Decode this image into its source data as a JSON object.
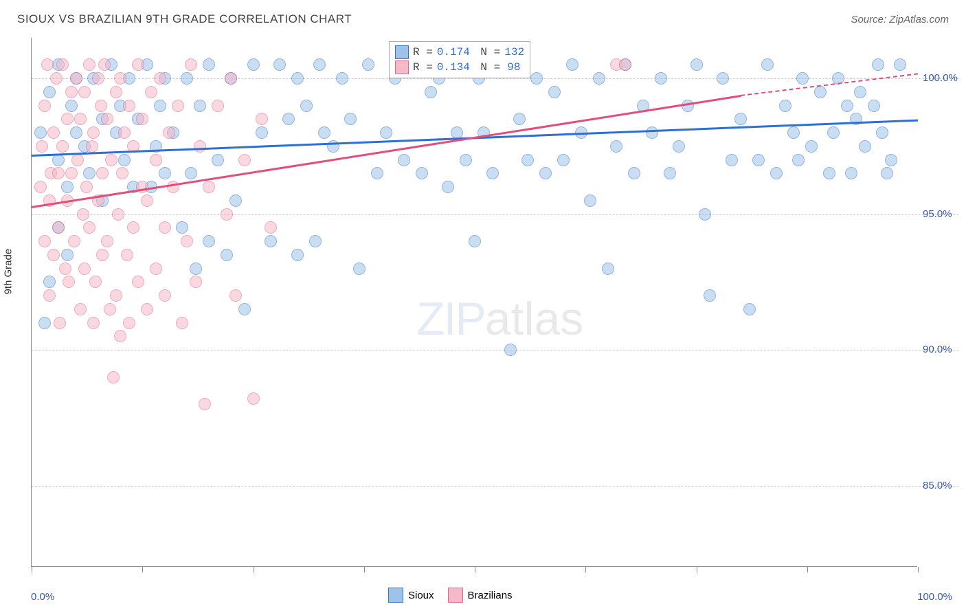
{
  "title": "SIOUX VS BRAZILIAN 9TH GRADE CORRELATION CHART",
  "source": "Source: ZipAtlas.com",
  "ylabel": "9th Grade",
  "watermark_zip": "ZIP",
  "watermark_atlas": "atlas",
  "chart": {
    "type": "scatter",
    "xlim": [
      0,
      100
    ],
    "ylim": [
      82,
      101.5
    ],
    "x_ticks": [
      0,
      12.5,
      25,
      37.5,
      50,
      62.5,
      75,
      87.5,
      100
    ],
    "x_labels": {
      "0": "0.0%",
      "100": "100.0%"
    },
    "y_gridlines": [
      85,
      90,
      95,
      100
    ],
    "y_labels": {
      "85": "85.0%",
      "90": "90.0%",
      "95": "95.0%",
      "100": "100.0%"
    },
    "background_color": "#ffffff",
    "grid_color": "#cccccc",
    "axis_color": "#888888",
    "tick_label_color": "#3857a6",
    "title_fontsize": 17,
    "label_fontsize": 15
  },
  "series": [
    {
      "name": "Sioux",
      "color_fill": "#9ec3ea",
      "color_stroke": "#3b78c4",
      "trend_color": "#2d6fd8",
      "trend_width": 2.5,
      "R": "0.174",
      "N": "132",
      "trend": {
        "x1": 0,
        "y1": 97.2,
        "x2": 100,
        "y2": 98.5,
        "dash_from": 100
      },
      "points": [
        [
          1,
          98
        ],
        [
          2,
          99.5
        ],
        [
          3,
          97
        ],
        [
          3,
          100.5
        ],
        [
          4,
          96
        ],
        [
          4.5,
          99
        ],
        [
          5,
          98
        ],
        [
          5,
          100
        ],
        [
          6,
          97.5
        ],
        [
          6.5,
          96.5
        ],
        [
          7,
          100
        ],
        [
          8,
          98.5
        ],
        [
          8,
          95.5
        ],
        [
          9,
          100.5
        ],
        [
          9.5,
          98
        ],
        [
          10,
          99
        ],
        [
          10.5,
          97
        ],
        [
          11,
          100
        ],
        [
          11.5,
          96
        ],
        [
          12,
          98.5
        ],
        [
          13,
          100.5
        ],
        [
          13.5,
          96
        ],
        [
          14,
          97.5
        ],
        [
          14.5,
          99
        ],
        [
          15,
          96.5
        ],
        [
          15,
          100
        ],
        [
          16,
          98
        ],
        [
          17,
          94.5
        ],
        [
          17.5,
          100
        ],
        [
          18,
          96.5
        ],
        [
          18.5,
          93
        ],
        [
          19,
          99
        ],
        [
          20,
          94
        ],
        [
          20,
          100.5
        ],
        [
          21,
          97
        ],
        [
          22,
          93.5
        ],
        [
          22.5,
          100
        ],
        [
          23,
          95.5
        ],
        [
          24,
          91.5
        ],
        [
          25,
          100.5
        ],
        [
          26,
          98
        ],
        [
          27,
          94
        ],
        [
          28,
          100.5
        ],
        [
          29,
          98.5
        ],
        [
          30,
          100
        ],
        [
          30,
          93.5
        ],
        [
          31,
          99
        ],
        [
          32,
          94
        ],
        [
          32.5,
          100.5
        ],
        [
          33,
          98
        ],
        [
          34,
          97.5
        ],
        [
          35,
          100
        ],
        [
          36,
          98.5
        ],
        [
          37,
          93
        ],
        [
          38,
          100.5
        ],
        [
          39,
          96.5
        ],
        [
          40,
          98
        ],
        [
          41,
          100
        ],
        [
          42,
          97
        ],
        [
          43,
          100.5
        ],
        [
          44,
          96.5
        ],
        [
          45,
          99.5
        ],
        [
          46,
          100
        ],
        [
          47,
          96
        ],
        [
          48,
          98
        ],
        [
          48.5,
          100.5
        ],
        [
          49,
          97
        ],
        [
          50,
          94
        ],
        [
          50.5,
          100
        ],
        [
          51,
          98
        ],
        [
          52,
          96.5
        ],
        [
          53,
          100.5
        ],
        [
          54,
          90
        ],
        [
          55,
          98.5
        ],
        [
          56,
          97
        ],
        [
          57,
          100
        ],
        [
          58,
          96.5
        ],
        [
          59,
          99.5
        ],
        [
          60,
          97
        ],
        [
          61,
          100.5
        ],
        [
          62,
          98
        ],
        [
          63,
          95.5
        ],
        [
          64,
          100
        ],
        [
          65,
          93
        ],
        [
          66,
          97.5
        ],
        [
          67,
          100.5
        ],
        [
          68,
          96.5
        ],
        [
          69,
          99
        ],
        [
          70,
          98
        ],
        [
          71,
          100
        ],
        [
          72,
          96.5
        ],
        [
          73,
          97.5
        ],
        [
          74,
          99
        ],
        [
          75,
          100.5
        ],
        [
          76,
          95
        ],
        [
          76.5,
          92
        ],
        [
          78,
          100
        ],
        [
          79,
          97
        ],
        [
          80,
          98.5
        ],
        [
          81,
          91.5
        ],
        [
          82,
          97
        ],
        [
          83,
          100.5
        ],
        [
          84,
          96.5
        ],
        [
          85,
          99
        ],
        [
          86,
          98
        ],
        [
          86.5,
          97
        ],
        [
          87,
          100
        ],
        [
          88,
          97.5
        ],
        [
          89,
          99.5
        ],
        [
          90,
          96.5
        ],
        [
          90.5,
          98
        ],
        [
          91,
          100
        ],
        [
          92,
          99
        ],
        [
          92.5,
          96.5
        ],
        [
          93,
          98.5
        ],
        [
          93.5,
          99.5
        ],
        [
          94,
          97.5
        ],
        [
          95,
          99
        ],
        [
          95.5,
          100.5
        ],
        [
          96,
          98
        ],
        [
          96.5,
          96.5
        ],
        [
          97,
          97
        ],
        [
          98,
          100.5
        ],
        [
          3,
          94.5
        ],
        [
          4,
          93.5
        ],
        [
          2,
          92.5
        ],
        [
          1.5,
          91
        ]
      ]
    },
    {
      "name": "Brazilians",
      "color_fill": "#f5b9c8",
      "color_stroke": "#e06890",
      "trend_color": "#e34d7a",
      "trend_width": 2.5,
      "R": "0.134",
      "N": "98",
      "trend": {
        "x1": 0,
        "y1": 95.3,
        "x2": 80,
        "y2": 99.4,
        "dash_from": 80,
        "dash_x2": 100,
        "dash_y2": 100.2
      },
      "points": [
        [
          1,
          96
        ],
        [
          1.2,
          97.5
        ],
        [
          1.5,
          94
        ],
        [
          1.5,
          99
        ],
        [
          1.8,
          100.5
        ],
        [
          2,
          95.5
        ],
        [
          2,
          92
        ],
        [
          2.2,
          96.5
        ],
        [
          2.5,
          98
        ],
        [
          2.5,
          93.5
        ],
        [
          2.8,
          100
        ],
        [
          3,
          96.5
        ],
        [
          3,
          94.5
        ],
        [
          3.2,
          91
        ],
        [
          3.5,
          97.5
        ],
        [
          3.5,
          100.5
        ],
        [
          3.8,
          93
        ],
        [
          4,
          98.5
        ],
        [
          4,
          95.5
        ],
        [
          4.2,
          92.5
        ],
        [
          4.5,
          99.5
        ],
        [
          4.5,
          96.5
        ],
        [
          4.8,
          94
        ],
        [
          5,
          100
        ],
        [
          5.2,
          97
        ],
        [
          5.5,
          91.5
        ],
        [
          5.5,
          98.5
        ],
        [
          5.8,
          95
        ],
        [
          6,
          99.5
        ],
        [
          6,
          93
        ],
        [
          6.2,
          96
        ],
        [
          6.5,
          100.5
        ],
        [
          6.5,
          94.5
        ],
        [
          6.8,
          97.5
        ],
        [
          7,
          91
        ],
        [
          7,
          98
        ],
        [
          7.2,
          92.5
        ],
        [
          7.5,
          100
        ],
        [
          7.5,
          95.5
        ],
        [
          7.8,
          99
        ],
        [
          8,
          93.5
        ],
        [
          8,
          96.5
        ],
        [
          8.2,
          100.5
        ],
        [
          8.5,
          94
        ],
        [
          8.5,
          98.5
        ],
        [
          8.8,
          91.5
        ],
        [
          9,
          97
        ],
        [
          9.2,
          89
        ],
        [
          9.5,
          99.5
        ],
        [
          9.5,
          92
        ],
        [
          9.8,
          95
        ],
        [
          10,
          100
        ],
        [
          10,
          90.5
        ],
        [
          10.2,
          96.5
        ],
        [
          10.5,
          98
        ],
        [
          10.8,
          93.5
        ],
        [
          11,
          99
        ],
        [
          11,
          91
        ],
        [
          11.5,
          97.5
        ],
        [
          11.5,
          94.5
        ],
        [
          12,
          100.5
        ],
        [
          12,
          92.5
        ],
        [
          12.5,
          96
        ],
        [
          12.5,
          98.5
        ],
        [
          13,
          95.5
        ],
        [
          13,
          91.5
        ],
        [
          13.5,
          99.5
        ],
        [
          14,
          93
        ],
        [
          14,
          97
        ],
        [
          14.5,
          100
        ],
        [
          15,
          94.5
        ],
        [
          15,
          92
        ],
        [
          15.5,
          98
        ],
        [
          16,
          96
        ],
        [
          16.5,
          99
        ],
        [
          17,
          91
        ],
        [
          17.5,
          94
        ],
        [
          18,
          100.5
        ],
        [
          18.5,
          92.5
        ],
        [
          19,
          97.5
        ],
        [
          19.5,
          88
        ],
        [
          20,
          96
        ],
        [
          21,
          99
        ],
        [
          22,
          95
        ],
        [
          22.5,
          100
        ],
        [
          23,
          92
        ],
        [
          24,
          97
        ],
        [
          25,
          88.2
        ],
        [
          26,
          98.5
        ],
        [
          27,
          94.5
        ],
        [
          66,
          100.5
        ],
        [
          67,
          100.5
        ]
      ]
    }
  ],
  "legend_bottom": [
    {
      "label": "Sioux",
      "fill": "#9ec3ea",
      "stroke": "#3b78c4"
    },
    {
      "label": "Brazilians",
      "fill": "#f5b9c8",
      "stroke": "#e06890"
    }
  ]
}
